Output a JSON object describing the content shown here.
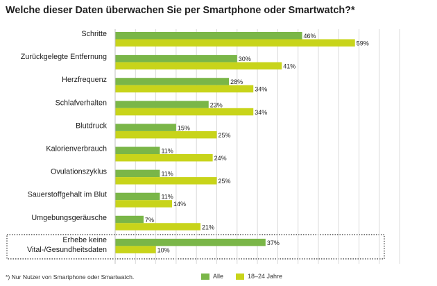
{
  "title": "Welche dieser Daten überwachen Sie per Smartphone oder Smartwatch?*",
  "footnote": "*) Nur Nutzer von Smartphone oder Smartwatch.",
  "colors": {
    "series_all": "#7ab648",
    "series_young": "#c8d41a",
    "grid": "#d9d9d9",
    "highlight_border": "#222222"
  },
  "chart_data": {
    "type": "bar",
    "orientation": "horizontal",
    "title": "Welche dieser Daten überwachen Sie per Smartphone oder Smartwatch?*",
    "categories": [
      "Schritte",
      "Zurückgelegte Entfernung",
      "Herzfrequenz",
      "Schlafverhalten",
      "Blutdruck",
      "Kalorienverbrauch",
      "Ovulationszyklus",
      "Sauerstoffgehalt im Blut",
      "Umgebungsgeräusche",
      "Erhebe keine Vital-/Gesundheitsdaten"
    ],
    "category_lines": [
      [
        "Schritte"
      ],
      [
        "Zurückgelegte Entfernung"
      ],
      [
        "Herzfrequenz"
      ],
      [
        "Schlafverhalten"
      ],
      [
        "Blutdruck"
      ],
      [
        "Kalorienverbrauch"
      ],
      [
        "Ovulationszyklus"
      ],
      [
        "Sauerstoffgehalt im Blut"
      ],
      [
        "Umgebungsgeräusche"
      ],
      [
        "Erhebe keine",
        "Vital-/Gesundheitsdaten"
      ]
    ],
    "series": [
      {
        "name": "Alle",
        "values": [
          46,
          30,
          28,
          23,
          15,
          11,
          11,
          11,
          7,
          37
        ]
      },
      {
        "name": "18–24 Jahre",
        "values": [
          59,
          41,
          34,
          34,
          25,
          24,
          25,
          14,
          21,
          10
        ]
      }
    ],
    "value_suffix": "%",
    "xlim": [
      0,
      70
    ],
    "grid": true,
    "highlighted_category": "Erhebe keine Vital-/Gesundheitsdaten",
    "legend_position": "bottom"
  }
}
